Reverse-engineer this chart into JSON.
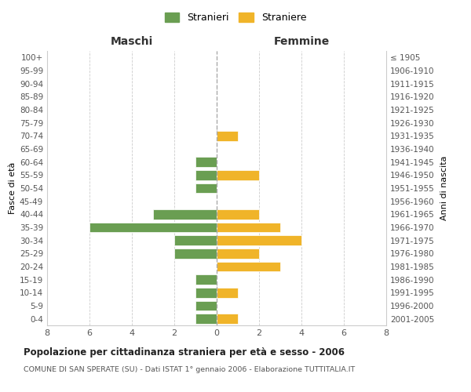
{
  "age_groups": [
    "0-4",
    "5-9",
    "10-14",
    "15-19",
    "20-24",
    "25-29",
    "30-34",
    "35-39",
    "40-44",
    "45-49",
    "50-54",
    "55-59",
    "60-64",
    "65-69",
    "70-74",
    "75-79",
    "80-84",
    "85-89",
    "90-94",
    "95-99",
    "100+"
  ],
  "birth_years": [
    "2001-2005",
    "1996-2000",
    "1991-1995",
    "1986-1990",
    "1981-1985",
    "1976-1980",
    "1971-1975",
    "1966-1970",
    "1961-1965",
    "1956-1960",
    "1951-1955",
    "1946-1950",
    "1941-1945",
    "1936-1940",
    "1931-1935",
    "1926-1930",
    "1921-1925",
    "1916-1920",
    "1911-1915",
    "1906-1910",
    "≤ 1905"
  ],
  "maschi": [
    1,
    1,
    1,
    1,
    0,
    2,
    2,
    6,
    3,
    0,
    1,
    1,
    1,
    0,
    0,
    0,
    0,
    0,
    0,
    0,
    0
  ],
  "femmine": [
    1,
    0,
    1,
    0,
    3,
    2,
    4,
    3,
    2,
    0,
    0,
    2,
    0,
    0,
    1,
    0,
    0,
    0,
    0,
    0,
    0
  ],
  "color_maschi": "#6a9e52",
  "color_femmine": "#f0b429",
  "title": "Popolazione per cittadinanza straniera per età e sesso - 2006",
  "subtitle": "COMUNE DI SAN SPERATE (SU) - Dati ISTAT 1° gennaio 2006 - Elaborazione TUTTITALIA.IT",
  "xlabel_maschi": "Maschi",
  "xlabel_femmine": "Femmine",
  "ylabel": "Fasce di età",
  "ylabel_right": "Anni di nascita",
  "legend_maschi": "Stranieri",
  "legend_femmine": "Straniere",
  "xlim": 8,
  "background_color": "#ffffff",
  "grid_color": "#cccccc"
}
